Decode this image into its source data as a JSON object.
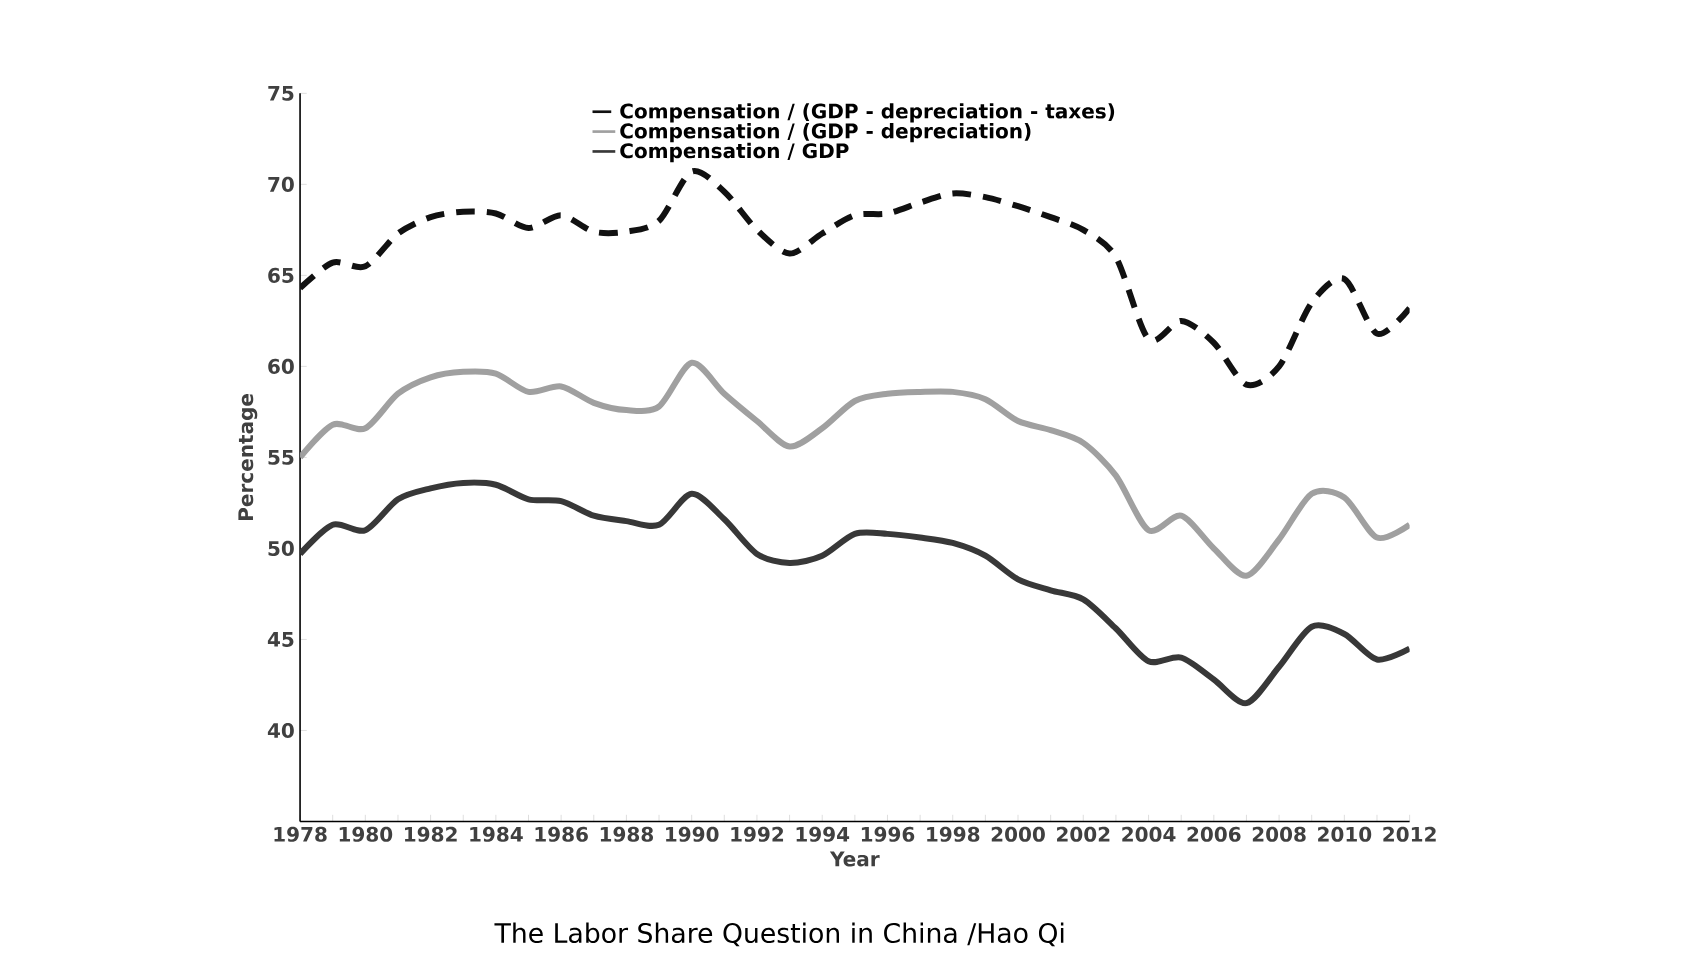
{
  "chart_data": {
    "type": "line",
    "xlabel": "Year",
    "ylabel": "Percentage",
    "legend": "top",
    "grid": false,
    "marker": "none",
    "x": [
      1978,
      1979,
      1980,
      1981,
      1982,
      1983,
      1984,
      1985,
      1986,
      1987,
      1988,
      1989,
      1990,
      1991,
      1992,
      1993,
      1994,
      1995,
      1996,
      1997,
      1998,
      1999,
      2000,
      2001,
      2002,
      2003,
      2004,
      2005,
      2006,
      2007,
      2008,
      2009,
      2010,
      2011,
      2012
    ],
    "xlim": [
      1978,
      2012
    ],
    "xticks": [
      1978,
      {
        "value": 1979,
        "label": null
      },
      1980,
      {
        "value": 1981,
        "label": null
      },
      1982,
      {
        "value": 1983,
        "label": null
      },
      1984,
      {
        "value": 1985,
        "label": null
      },
      1986,
      {
        "value": 1987,
        "label": null
      },
      1988,
      {
        "value": 1989,
        "label": null
      },
      1990,
      {
        "value": 1991,
        "label": null
      },
      1992,
      {
        "value": 1993,
        "label": null
      },
      1994,
      {
        "value": 1995,
        "label": null
      },
      1996,
      {
        "value": 1997,
        "label": null
      },
      1998,
      {
        "value": 1999,
        "label": null
      },
      2000,
      {
        "value": 2001,
        "label": null
      },
      2002,
      {
        "value": 2003,
        "label": null
      },
      2004,
      {
        "value": 2005,
        "label": null
      },
      2006,
      {
        "value": 2007,
        "label": null
      },
      2008,
      {
        "value": 2009,
        "label": null
      },
      2010,
      {
        "value": 2011,
        "label": null
      },
      2012
    ],
    "ylim": [
      35,
      75
    ],
    "yticks": [
      40,
      45,
      50,
      55,
      60,
      65,
      70,
      75
    ],
    "series": [
      {
        "name": "Compensation / (GDP - depreciation - taxes)",
        "color": "#111111",
        "line_style": "dashed",
        "values": [
          64.3,
          65.7,
          65.5,
          67.3,
          68.2,
          68.5,
          68.4,
          67.6,
          68.3,
          67.4,
          67.4,
          68.0,
          70.7,
          69.6,
          67.5,
          66.2,
          67.3,
          68.3,
          68.4,
          69.0,
          69.5,
          69.3,
          68.8,
          68.2,
          67.5,
          66.0,
          61.5,
          62.5,
          61.3,
          59.0,
          60.0,
          63.5,
          64.8,
          61.8,
          63.2
        ]
      },
      {
        "name": "Compensation / (GDP - depreciation)",
        "color": "#a0a0a0",
        "line_style": "solid",
        "values": [
          55.0,
          56.8,
          56.6,
          58.5,
          59.4,
          59.7,
          59.6,
          58.6,
          58.9,
          58.0,
          57.6,
          57.8,
          60.2,
          58.5,
          57.0,
          55.6,
          56.6,
          58.1,
          58.5,
          58.6,
          58.6,
          58.2,
          57.0,
          56.5,
          55.8,
          54.0,
          51.0,
          51.8,
          50.0,
          48.5,
          50.5,
          53.0,
          52.8,
          50.6,
          51.3
        ]
      },
      {
        "name": "Compensation / GDP",
        "color": "#383838",
        "line_style": "solid",
        "values": [
          49.7,
          51.3,
          51.0,
          52.7,
          53.3,
          53.6,
          53.5,
          52.7,
          52.6,
          51.8,
          51.5,
          51.3,
          53.0,
          51.6,
          49.7,
          49.2,
          49.6,
          50.8,
          50.8,
          50.6,
          50.3,
          49.6,
          48.3,
          47.7,
          47.2,
          45.6,
          43.8,
          44.0,
          42.8,
          41.5,
          43.5,
          45.7,
          45.3,
          43.9,
          44.5
        ]
      }
    ],
    "annotations": [
      "The Labor Share Question in China /Hao Qi"
    ]
  }
}
